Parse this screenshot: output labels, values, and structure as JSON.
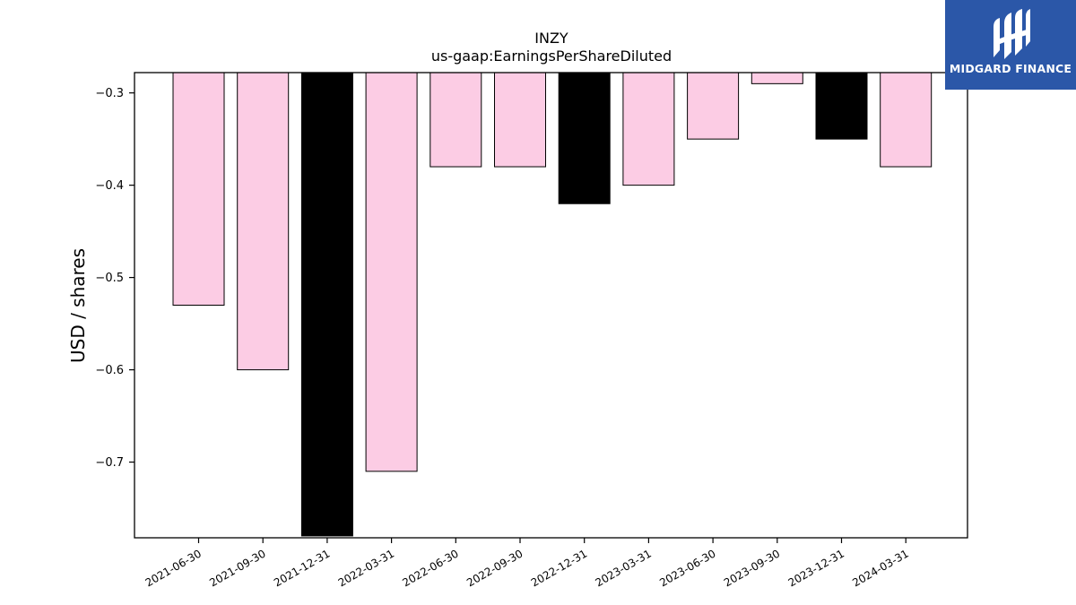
{
  "brand": {
    "name": "MIDGARD FINANCE",
    "bg_color": "#2b57a8"
  },
  "chart_data": {
    "type": "bar",
    "title": "INZY",
    "subtitle": "us-gaap:EarningsPerShareDiluted",
    "xlabel": "",
    "ylabel": "USD / shares",
    "categories": [
      "2021-06-30",
      "2021-09-30",
      "2021-12-31",
      "2022-03-31",
      "2022-06-30",
      "2022-09-30",
      "2022-12-31",
      "2023-03-31",
      "2023-06-30",
      "2023-09-30",
      "2023-12-31",
      "2024-03-31"
    ],
    "values": [
      -0.53,
      -0.6,
      -0.78,
      -0.71,
      -0.38,
      -0.38,
      -0.42,
      -0.4,
      -0.35,
      -0.29,
      -0.35,
      -0.38
    ],
    "bar_colors": [
      "#fccce4",
      "#fccce4",
      "#000000",
      "#fccce4",
      "#fccce4",
      "#fccce4",
      "#000000",
      "#fccce4",
      "#fccce4",
      "#fccce4",
      "#000000",
      "#fccce4"
    ],
    "ylim": [
      -0.782,
      -0.278
    ],
    "yticks": [
      -0.3,
      -0.4,
      -0.5,
      -0.6,
      -0.7
    ],
    "ytick_labels": [
      "−0.3",
      "−0.4",
      "−0.5",
      "−0.6",
      "−0.7"
    ],
    "grid": false,
    "legend": "none"
  }
}
